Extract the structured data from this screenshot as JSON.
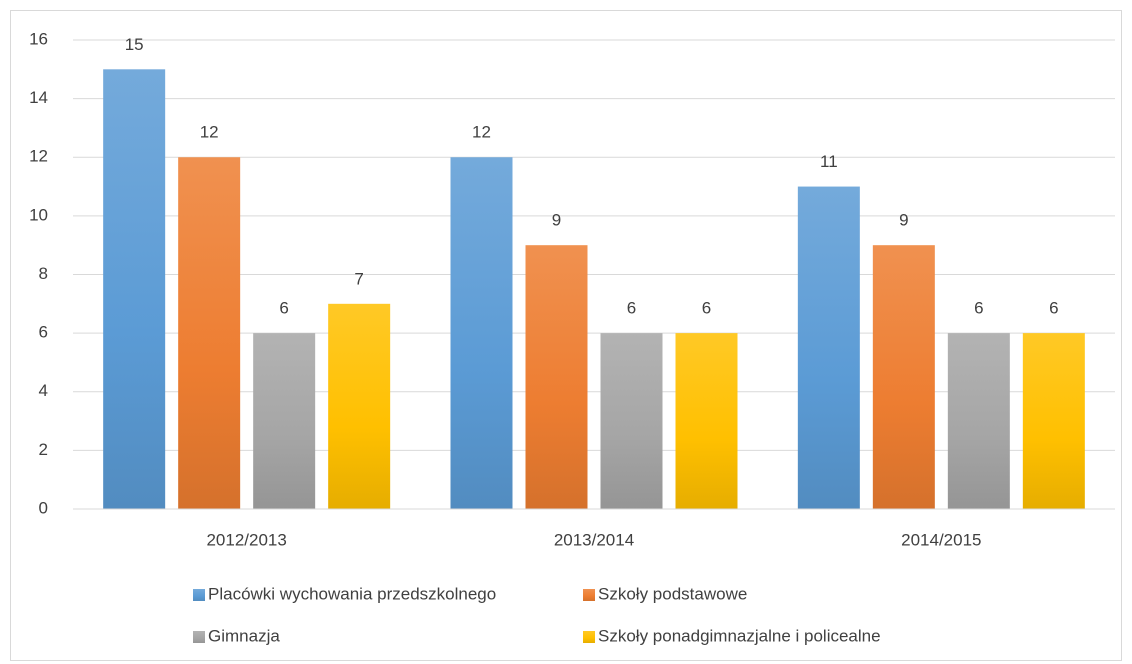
{
  "chart_data": {
    "type": "bar",
    "categories": [
      "2012/2013",
      "2013/2014",
      "2014/2015"
    ],
    "series": [
      {
        "name": "Placówki wychowania przedszkolnego",
        "color": "#5b9bd5",
        "values": [
          15,
          12,
          11
        ]
      },
      {
        "name": "Szkoły podstawowe",
        "color": "#ed7d31",
        "values": [
          12,
          9,
          9
        ]
      },
      {
        "name": "Gimnazja",
        "color": "#a5a5a5",
        "values": [
          6,
          6,
          6
        ]
      },
      {
        "name": "Szkoły ponadgimnazjalne i policealne",
        "color": "#ffc000",
        "values": [
          7,
          6,
          6
        ]
      }
    ],
    "ylim": [
      0,
      16
    ],
    "yticks": [
      0,
      2,
      4,
      6,
      8,
      10,
      12,
      14,
      16
    ],
    "grid": true,
    "legend": "bottom"
  }
}
